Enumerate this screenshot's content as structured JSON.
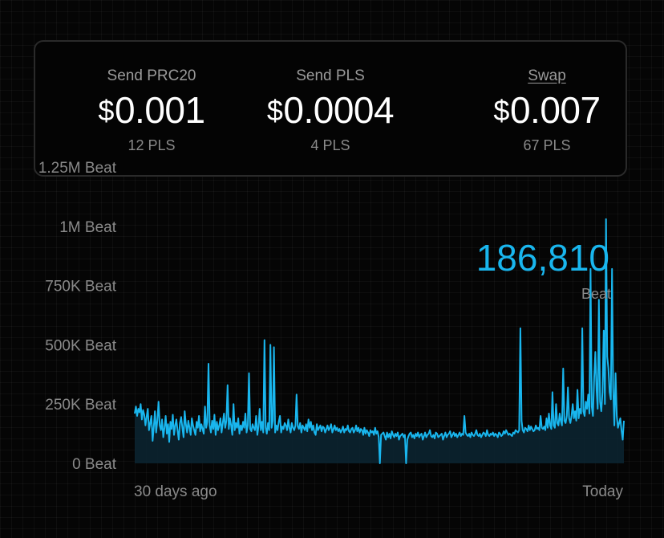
{
  "fees": [
    {
      "label": "Send PRC20",
      "currency": "$",
      "price": "0.001",
      "amount": "12 PLS",
      "link": false
    },
    {
      "label": "Send PLS",
      "currency": "$",
      "price": "0.0004",
      "amount": "4 PLS",
      "link": false
    },
    {
      "label": "Swap",
      "currency": "$",
      "price": "0.007",
      "amount": "67 PLS",
      "link": true
    }
  ],
  "colors": {
    "line": "#19b6ee",
    "area": "#0b2430"
  },
  "chart_data": {
    "type": "line",
    "title": "",
    "xlabel": "",
    "ylabel": "",
    "ylim": [
      0,
      1250000
    ],
    "yticks": [
      {
        "value": 0,
        "label": "0 Beat"
      },
      {
        "value": 250000,
        "label": "250K Beat"
      },
      {
        "value": 500000,
        "label": "500K Beat"
      },
      {
        "value": 750000,
        "label": "750K Beat"
      },
      {
        "value": 1000000,
        "label": "1M Beat"
      },
      {
        "value": 1250000,
        "label": "1.25M Beat"
      }
    ],
    "x_start_label": "30 days ago",
    "x_end_label": "Today",
    "current_value": "186,810",
    "current_unit": "Beat",
    "series": [
      {
        "values": [
          210000,
          240000,
          200000,
          230000,
          215000,
          250000,
          185000,
          225000,
          205000,
          160000,
          195000,
          230000,
          140000,
          170000,
          200000,
          95000,
          150000,
          220000,
          130000,
          180000,
          260000,
          160000,
          140000,
          185000,
          110000,
          150000,
          200000,
          125000,
          165000,
          90000,
          175000,
          145000,
          205000,
          120000,
          160000,
          185000,
          140000,
          100000,
          170000,
          195000,
          150000,
          110000,
          220000,
          165000,
          130000,
          180000,
          150000,
          120000,
          190000,
          160000,
          140000,
          120000,
          175000,
          150000,
          200000,
          135000,
          165000,
          145000,
          125000,
          240000,
          150000,
          175000,
          420000,
          160000,
          130000,
          180000,
          145000,
          205000,
          120000,
          175000,
          140000,
          160000,
          190000,
          130000,
          170000,
          210000,
          150000,
          180000,
          330000,
          145000,
          190000,
          160000,
          120000,
          250000,
          140000,
          170000,
          150000,
          190000,
          125000,
          160000,
          140000,
          175000,
          150000,
          210000,
          130000,
          160000,
          380000,
          145000,
          135000,
          165000,
          150000,
          140000,
          200000,
          120000,
          155000,
          230000,
          140000,
          175000,
          130000,
          520000,
          150000,
          125000,
          170000,
          140000,
          500000,
          150000,
          180000,
          490000,
          130000,
          160000,
          140000,
          175000,
          200000,
          130000,
          155000,
          145000,
          170000,
          160000,
          140000,
          185000,
          150000,
          130000,
          170000,
          150000,
          140000,
          160000,
          290000,
          155000,
          145000,
          170000,
          130000,
          160000,
          150000,
          140000,
          165000,
          135000,
          185000,
          150000,
          175000,
          140000,
          160000,
          130000,
          120000,
          165000,
          140000,
          150000,
          160000,
          135000,
          155000,
          150000,
          130000,
          145000,
          160000,
          140000,
          150000,
          165000,
          130000,
          145000,
          160000,
          140000,
          150000,
          135000,
          145000,
          130000,
          140000,
          155000,
          130000,
          145000,
          140000,
          160000,
          135000,
          130000,
          145000,
          150000,
          130000,
          140000,
          160000,
          135000,
          150000,
          130000,
          145000,
          140000,
          120000,
          150000,
          125000,
          140000,
          130000,
          115000,
          140000,
          130000,
          135000,
          120000,
          150000,
          125000,
          135000,
          110000,
          0,
          120000,
          125000,
          130000,
          115000,
          100000,
          130000,
          110000,
          125000,
          105000,
          135000,
          120000,
          110000,
          125000,
          115000,
          130000,
          100000,
          115000,
          120000,
          125000,
          110000,
          120000,
          0,
          100000,
          115000,
          125000,
          130000,
          110000,
          120000,
          105000,
          125000,
          115000,
          130000,
          110000,
          120000,
          125000,
          100000,
          115000,
          130000,
          110000,
          120000,
          125000,
          140000,
          115000,
          110000,
          120000,
          105000,
          130000,
          125000,
          110000,
          115000,
          120000,
          125000,
          100000,
          115000,
          130000,
          110000,
          120000,
          125000,
          135000,
          110000,
          120000,
          130000,
          115000,
          125000,
          110000,
          120000,
          130000,
          115000,
          125000,
          120000,
          200000,
          130000,
          120000,
          115000,
          125000,
          110000,
          130000,
          120000,
          115000,
          125000,
          140000,
          120000,
          115000,
          125000,
          110000,
          120000,
          130000,
          125000,
          115000,
          140000,
          120000,
          115000,
          125000,
          120000,
          130000,
          115000,
          125000,
          120000,
          110000,
          130000,
          125000,
          115000,
          120000,
          135000,
          125000,
          140000,
          130000,
          120000,
          125000,
          120000,
          115000,
          130000,
          125000,
          140000,
          135000,
          130000,
          140000,
          570000,
          180000,
          140000,
          130000,
          150000,
          145000,
          135000,
          160000,
          140000,
          155000,
          145000,
          135000,
          140000,
          160000,
          145000,
          150000,
          140000,
          200000,
          150000,
          145000,
          155000,
          140000,
          190000,
          150000,
          210000,
          160000,
          145000,
          300000,
          160000,
          150000,
          250000,
          170000,
          160000,
          210000,
          180000,
          160000,
          400000,
          180000,
          170000,
          200000,
          320000,
          190000,
          170000,
          200000,
          250000,
          190000,
          220000,
          180000,
          310000,
          190000,
          230000,
          210000,
          570000,
          220000,
          200000,
          260000,
          230000,
          290000,
          210000,
          820000,
          240000,
          200000,
          360000,
          470000,
          310000,
          230000,
          690000,
          260000,
          220000,
          300000,
          560000,
          250000,
          1030000,
          450000,
          400000,
          300000,
          270000,
          820000,
          320000,
          160000,
          380000,
          200000,
          150000,
          170000,
          190000,
          140000,
          100000,
          180000
        ]
      }
    ]
  }
}
